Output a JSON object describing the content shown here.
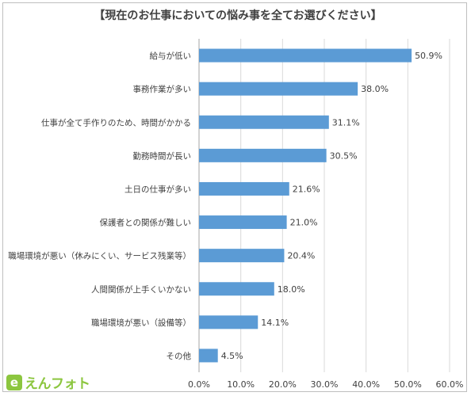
{
  "chart_data": {
    "type": "bar",
    "orientation": "horizontal",
    "title": "【現在のお仕事においての悩み事を全てお選びください】",
    "categories": [
      "給与が低い",
      "事務作業が多い",
      "仕事が全て手作りのため、時間がかかる",
      "勤務時間が長い",
      "土日の仕事が多い",
      "保護者との関係が難しい",
      "職場環境が悪い（休みにくい、サービス残業等）",
      "人間関係が上手くいかない",
      "職場環境が悪い（設備等）",
      "その他"
    ],
    "values": [
      50.9,
      38.0,
      31.1,
      30.5,
      21.6,
      21.0,
      20.4,
      18.0,
      14.1,
      4.5
    ],
    "value_labels": [
      "50.9%",
      "38.0%",
      "31.1%",
      "30.5%",
      "21.6%",
      "21.0%",
      "20.4%",
      "18.0%",
      "14.1%",
      "4.5%"
    ],
    "xlim": [
      0,
      60
    ],
    "x_ticks": [
      "0.0%",
      "10.0%",
      "20.0%",
      "30.0%",
      "40.0%",
      "50.0%",
      "60.0%"
    ],
    "grid": "vertical",
    "bar_color": "#5b9bd5",
    "grid_color": "#d9d9d9",
    "text_color": "#404040"
  },
  "logo": {
    "mark": "e",
    "text": "えんフォト",
    "color": "#8cc63f"
  }
}
